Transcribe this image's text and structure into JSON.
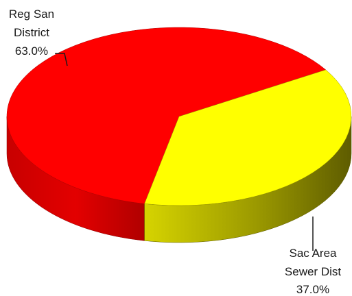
{
  "chart_data": {
    "type": "pie",
    "style": "3d",
    "title": "",
    "slices": [
      {
        "name": "Reg San District",
        "value": 63.0,
        "color": "#ff0000",
        "side_color": "#c00000"
      },
      {
        "name": "Sac Area Sewer Dist",
        "value": 37.0,
        "color": "#ffff00",
        "side_color": "#8c8a00"
      }
    ],
    "data_labels": [
      {
        "lines": [
          "Reg San",
          "District",
          "63.0%"
        ]
      },
      {
        "lines": [
          "Sac Area",
          "Sewer Dist",
          "37.0%"
        ]
      }
    ]
  }
}
